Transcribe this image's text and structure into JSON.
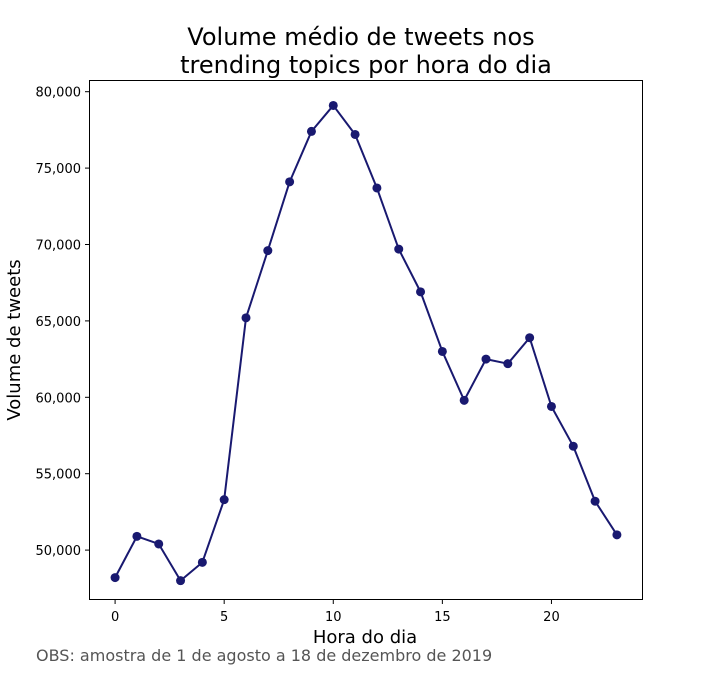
{
  "chart_data": {
    "type": "line",
    "title_line1": "Volume médio de tweets nos",
    "title_line2": "trending topics por hora do dia",
    "xlabel": "Hora do dia",
    "ylabel": "Volume de tweets",
    "note": "OBS: amostra de 1 de agosto a 18 de dezembro de 2019",
    "x": [
      0,
      1,
      2,
      3,
      4,
      5,
      6,
      7,
      8,
      9,
      10,
      11,
      12,
      13,
      14,
      15,
      16,
      17,
      18,
      19,
      20,
      21,
      22,
      23
    ],
    "series": [
      {
        "values": [
          48200,
          50900,
          50400,
          48000,
          49200,
          53300,
          65200,
          69600,
          74100,
          77400,
          79100,
          77200,
          73700,
          69700,
          66900,
          63000,
          59800,
          62500,
          62200,
          63900,
          59400,
          56800,
          53200,
          51000
        ],
        "color": "#191970"
      }
    ],
    "xlim": [
      -1.15,
      24.15
    ],
    "ylim": [
      46800,
      80700
    ],
    "xticks": [
      0,
      5,
      10,
      15,
      20
    ],
    "xtick_labels": [
      "0",
      "5",
      "10",
      "15",
      "20"
    ],
    "yticks": [
      50000,
      55000,
      60000,
      65000,
      70000,
      75000,
      80000
    ],
    "ytick_labels": [
      "50,000",
      "55,000",
      "60,000",
      "65,000",
      "70,000",
      "75,000",
      "80,000"
    ],
    "grid": false,
    "legend": "none"
  }
}
